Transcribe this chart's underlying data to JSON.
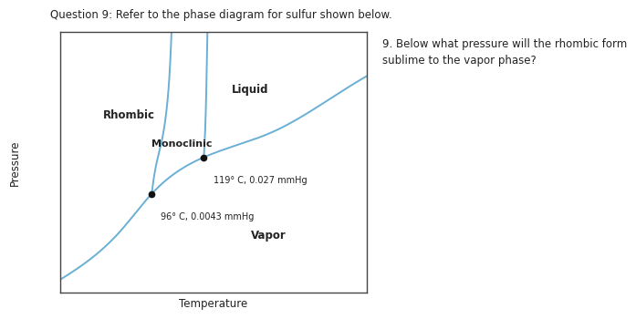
{
  "title": "Question 9: Refer to the phase diagram for sulfur shown below.",
  "question_text": "9. Below what pressure will the rhombic form\nsublime to the vapor phase?",
  "xlabel": "Temperature",
  "ylabel": "Pressure",
  "tp1": [
    0.3,
    0.38
  ],
  "tp2": [
    0.47,
    0.52
  ],
  "annotation_1": "96° C, 0.0043 mmHg",
  "annotation_2": "119° C, 0.027 mmHg",
  "line_color": "#6aafd4",
  "point_color": "#111111",
  "background_color": "#ffffff",
  "text_color": "#222222",
  "fig_width": 7.0,
  "fig_height": 3.58,
  "dpi": 100
}
